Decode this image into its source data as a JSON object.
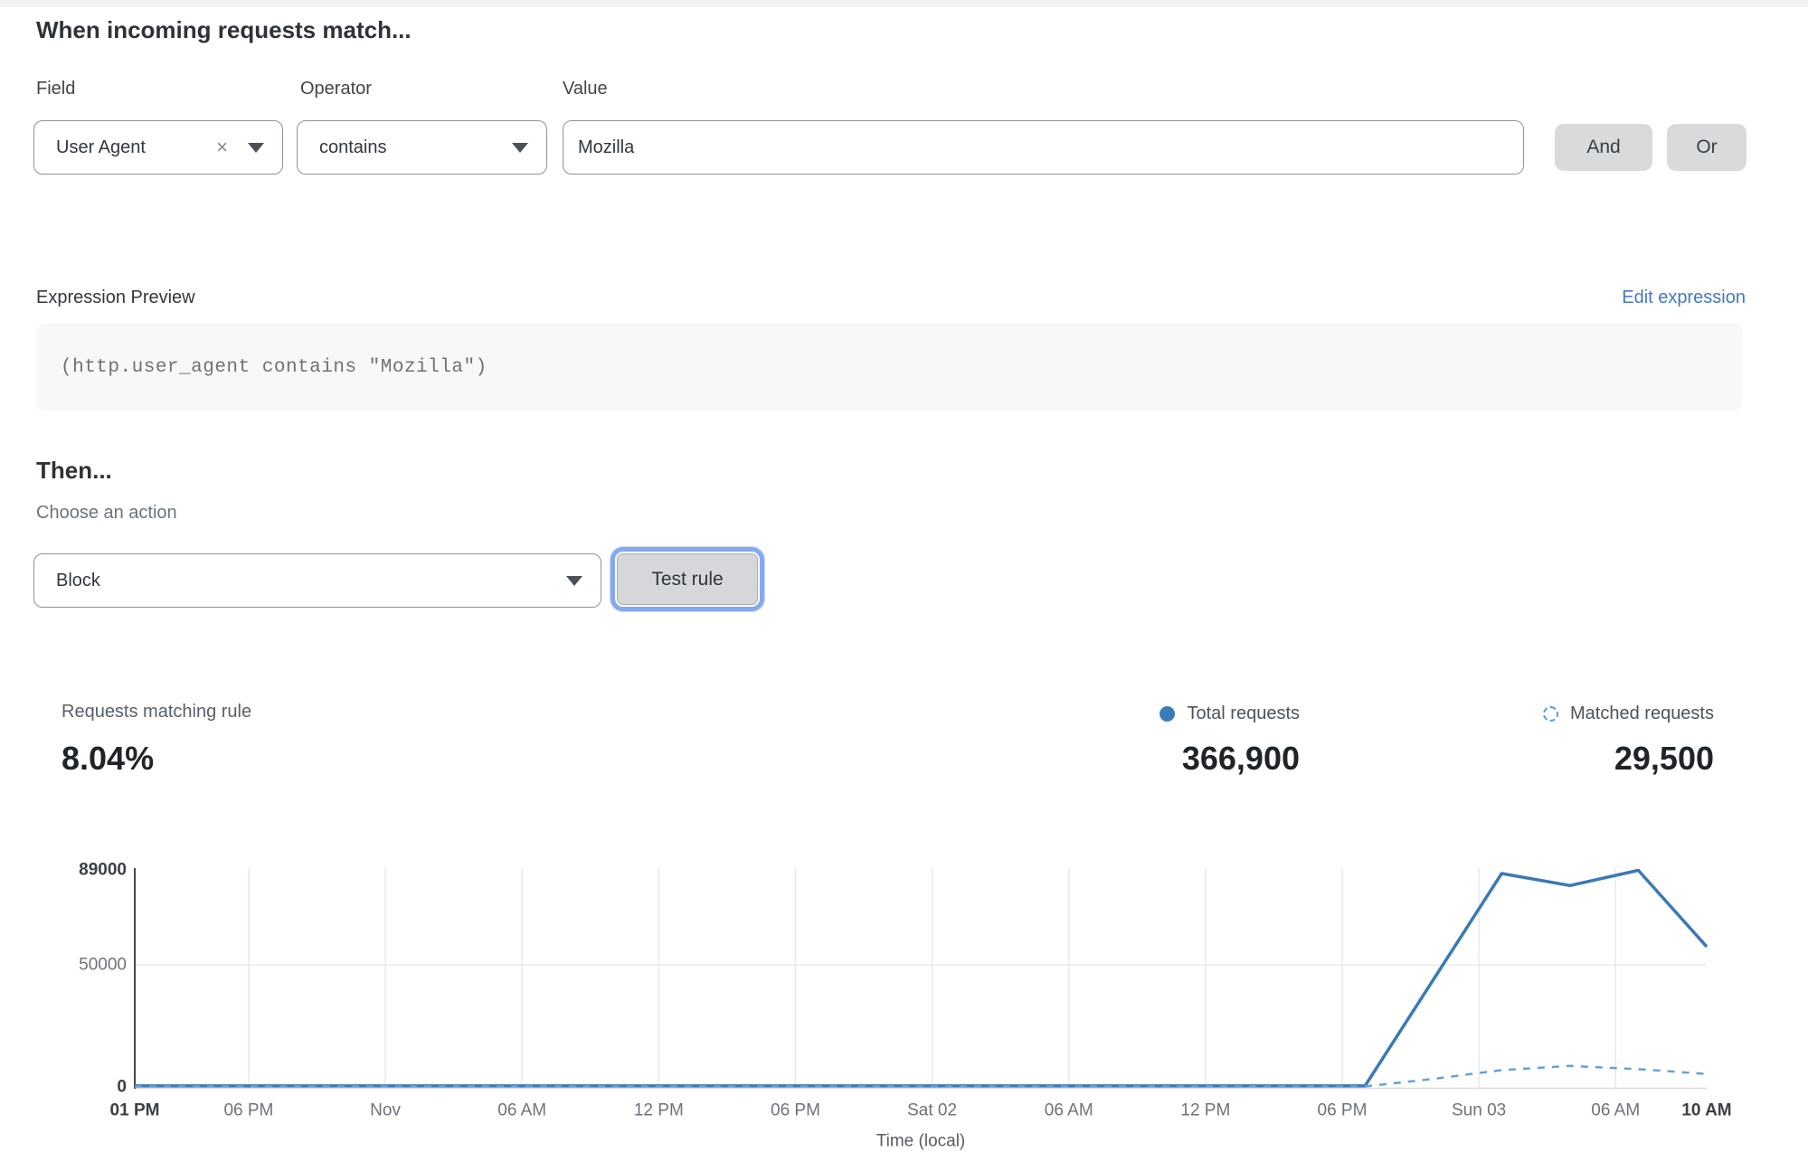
{
  "colors": {
    "link_blue": "#4377c9",
    "total_line": "#3a79b7",
    "matched_line": "#68a0d8",
    "focus_ring": "#86a9ee",
    "button_gray": "#d8dadc"
  },
  "rule_builder": {
    "heading": "When incoming requests match...",
    "field": {
      "label": "Field",
      "value": "User Agent",
      "clear_icon": "×"
    },
    "operator": {
      "label": "Operator",
      "value": "contains"
    },
    "value": {
      "label": "Value",
      "value": "Mozilla"
    },
    "and_label": "And",
    "or_label": "Or"
  },
  "expression": {
    "label": "Expression Preview",
    "edit_link": "Edit expression",
    "code": "(http.user_agent contains \"Mozilla\")"
  },
  "action": {
    "heading": "Then...",
    "label": "Choose an action",
    "value": "Block",
    "test_button": "Test rule"
  },
  "stats": {
    "match_label": "Requests matching rule",
    "match_value": "8.04%",
    "legends": [
      {
        "label": "Total requests",
        "value": "366,900",
        "marker": "solid-dot"
      },
      {
        "label": "Matched requests",
        "value": "29,500",
        "marker": "dashed-circle"
      }
    ]
  },
  "chart_data": {
    "type": "line",
    "title": "",
    "xlabel": "Time (local)",
    "ylabel": "",
    "xlim": [
      0,
      69
    ],
    "ylim": [
      0,
      89000
    ],
    "grid": true,
    "legend_position": "top-right",
    "x_unit": "hours from Thu 01 PM to Sun 10 AM",
    "xticks": [
      {
        "t": 0,
        "label": "01 PM",
        "bold": true,
        "grid": false
      },
      {
        "t": 5,
        "label": "06 PM",
        "bold": false,
        "grid": true
      },
      {
        "t": 11,
        "label": "Nov",
        "bold": false,
        "grid": true
      },
      {
        "t": 17,
        "label": "06 AM",
        "bold": false,
        "grid": true
      },
      {
        "t": 23,
        "label": "12 PM",
        "bold": false,
        "grid": true
      },
      {
        "t": 29,
        "label": "06 PM",
        "bold": false,
        "grid": true
      },
      {
        "t": 35,
        "label": "Sat 02",
        "bold": false,
        "grid": true
      },
      {
        "t": 41,
        "label": "06 AM",
        "bold": false,
        "grid": true
      },
      {
        "t": 47,
        "label": "12 PM",
        "bold": false,
        "grid": true
      },
      {
        "t": 53,
        "label": "06 PM",
        "bold": false,
        "grid": true
      },
      {
        "t": 59,
        "label": "Sun 03",
        "bold": false,
        "grid": true
      },
      {
        "t": 65,
        "label": "06 AM",
        "bold": false,
        "grid": true
      },
      {
        "t": 69,
        "label": "10 AM",
        "bold": true,
        "grid": false
      }
    ],
    "yticks": [
      {
        "v": 0,
        "label": "0",
        "bold": true,
        "grid": false
      },
      {
        "v": 50000,
        "label": "50000",
        "bold": false,
        "grid": true
      },
      {
        "v": 89000,
        "label": "89000",
        "bold": true,
        "grid": false
      }
    ],
    "series": [
      {
        "name": "Total requests",
        "style": "solid",
        "color": "#3a79b7",
        "points": [
          [
            0,
            400
          ],
          [
            6,
            400
          ],
          [
            12,
            400
          ],
          [
            18,
            400
          ],
          [
            24,
            400
          ],
          [
            30,
            400
          ],
          [
            36,
            400
          ],
          [
            42,
            400
          ],
          [
            48,
            400
          ],
          [
            54,
            400
          ],
          [
            60,
            87500
          ],
          [
            63,
            82600
          ],
          [
            66,
            88800
          ],
          [
            69,
            57500
          ]
        ]
      },
      {
        "name": "Matched requests",
        "style": "dashed",
        "color": "#68a0d8",
        "points": [
          [
            0,
            200
          ],
          [
            6,
            200
          ],
          [
            12,
            200
          ],
          [
            18,
            200
          ],
          [
            24,
            200
          ],
          [
            30,
            200
          ],
          [
            36,
            200
          ],
          [
            42,
            200
          ],
          [
            48,
            200
          ],
          [
            54,
            200
          ],
          [
            57,
            3300
          ],
          [
            60,
            6900
          ],
          [
            63,
            8600
          ],
          [
            66,
            7300
          ],
          [
            69,
            5300
          ]
        ]
      }
    ]
  }
}
